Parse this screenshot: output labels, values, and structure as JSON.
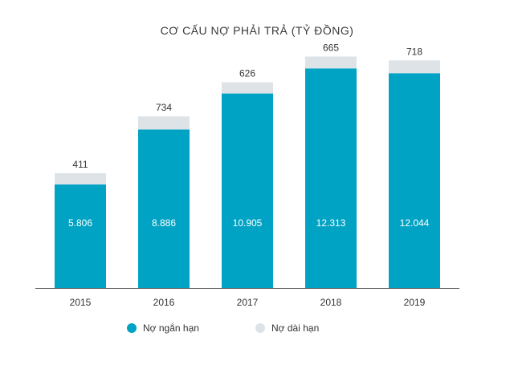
{
  "chart_data": {
    "type": "bar",
    "stacked": true,
    "title": "CƠ CẤU NỢ PHẢI TRẢ (TỶ ĐỒNG)",
    "categories": [
      "2015",
      "2016",
      "2017",
      "2018",
      "2019"
    ],
    "series": [
      {
        "name": "Nợ ngắn hạn",
        "values": [
          5806,
          8886,
          10905,
          12313,
          12044
        ],
        "labels": [
          "5.806",
          "8.886",
          "10.905",
          "12.313",
          "12.044"
        ],
        "color": "#00a3c4"
      },
      {
        "name": "Nợ dài hạn",
        "values": [
          411,
          734,
          626,
          665,
          718
        ],
        "labels": [
          "411",
          "734",
          "626",
          "665",
          "718"
        ],
        "color": "#dde3e7"
      }
    ],
    "ylim": [
      0,
      13000
    ],
    "grid": false,
    "legend_position": "bottom"
  }
}
